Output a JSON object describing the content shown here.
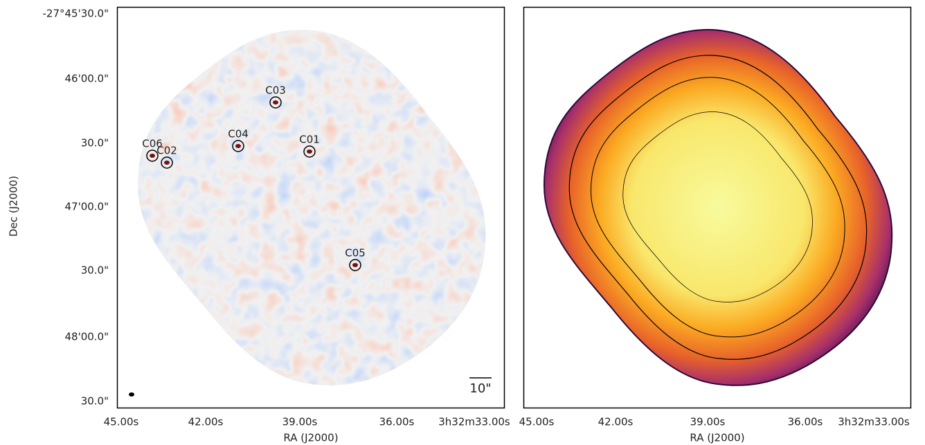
{
  "figure": {
    "left_panel": {
      "y_label": "Dec (J2000)",
      "x_label": "RA (J2000)",
      "y_ticks": [
        "-27°45'30.0\"",
        "46'00.0\"",
        "30.0\"",
        "47'00.0\"",
        "30.0\"",
        "48'00.0\"",
        "30.0\""
      ],
      "x_ticks": [
        "45.00s",
        "42.00s",
        "39.00s",
        "36.00s",
        "3h32m33.00s"
      ],
      "sources": [
        "C03",
        "C04",
        "C01",
        "C06",
        "C02",
        "C05"
      ],
      "scale_bar": "10\""
    },
    "right_panel": {
      "x_label": "RA (J2000)",
      "x_ticks": [
        "45.00s",
        "42.00s",
        "39.00s",
        "36.00s",
        "3h32m33.00s"
      ]
    }
  }
}
